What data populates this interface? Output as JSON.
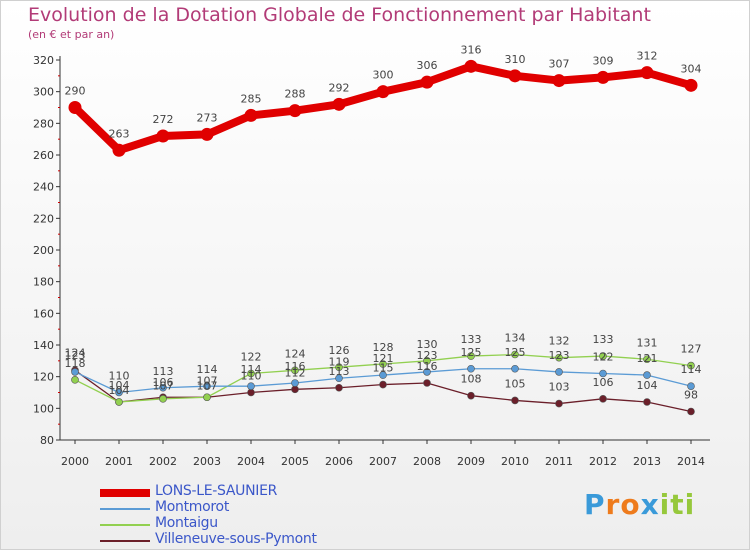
{
  "chart_data": {
    "type": "line",
    "title": "Evolution de la Dotation Globale de Fonctionnement par Habitant",
    "subtitle": "(en € et par an)",
    "x": [
      "2000",
      "2001",
      "2002",
      "2003",
      "2004",
      "2005",
      "2006",
      "2007",
      "2008",
      "2009",
      "2010",
      "2011",
      "2012",
      "2013",
      "2014"
    ],
    "ylim": [
      80,
      320
    ],
    "yticks": [
      80,
      100,
      120,
      140,
      160,
      180,
      200,
      220,
      240,
      260,
      280,
      300,
      320
    ],
    "grid": false,
    "series": [
      {
        "name": "LONS-LE-SAUNIER",
        "color": "#e00000",
        "values": [
          290,
          263,
          272,
          273,
          285,
          288,
          292,
          300,
          306,
          316,
          310,
          307,
          309,
          312,
          304
        ]
      },
      {
        "name": "Montmorot",
        "color": "#5b9bd5",
        "values": [
          123,
          110,
          113,
          114,
          114,
          116,
          119,
          121,
          123,
          125,
          125,
          123,
          122,
          121,
          114
        ]
      },
      {
        "name": "Montaigu",
        "color": "#92d050",
        "values": [
          118,
          104,
          106,
          107,
          122,
          124,
          126,
          128,
          130,
          133,
          134,
          132,
          133,
          131,
          127
        ]
      },
      {
        "name": "Villeneuve-sous-Pymont",
        "color": "#6b1f2a",
        "values": [
          124,
          104,
          107,
          107,
          110,
          112,
          113,
          115,
          116,
          108,
          105,
          103,
          106,
          104,
          98
        ]
      }
    ],
    "point_labels": [
      [
        "290",
        "263",
        "272",
        "273",
        "285",
        "288",
        "292",
        "300",
        "306",
        "316",
        "310",
        "307",
        "309",
        "312",
        "304"
      ],
      [
        "123",
        "110",
        "113",
        "114",
        "114",
        "116",
        "119",
        "121",
        "123",
        "125",
        "125",
        "123",
        "122",
        "121",
        "114"
      ],
      [
        "118",
        "104",
        "106",
        "107",
        "122",
        "124",
        "126",
        "128",
        "130",
        "133",
        "134",
        "132",
        "133",
        "131",
        "127"
      ],
      [
        "124",
        "104",
        "107",
        "107",
        "110",
        "112",
        "113",
        "115",
        "116",
        "108",
        "105",
        "103",
        "106",
        "104",
        "98"
      ]
    ]
  },
  "brand": {
    "letters": [
      "P",
      "r",
      "o",
      "x",
      "i",
      "t",
      "i"
    ],
    "colors": [
      "#3a9ad9",
      "#ee7b1c",
      "#ee7b1c",
      "#3a9ad9",
      "#96c83c",
      "#96c83c",
      "#96c83c"
    ]
  }
}
